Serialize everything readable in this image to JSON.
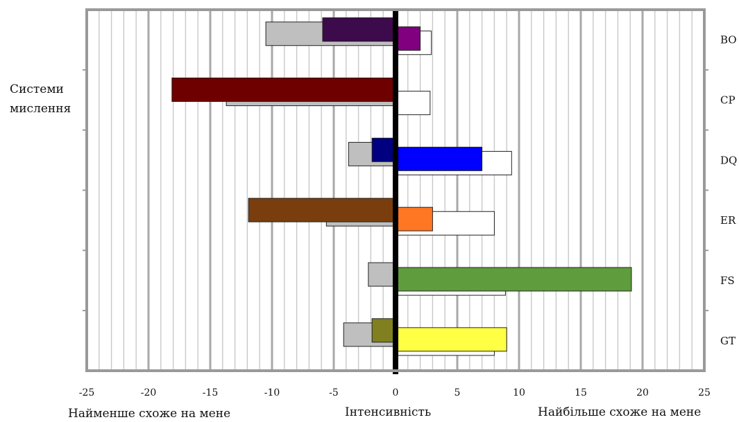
{
  "side_label": [
    "Системи",
    "мислення"
  ],
  "xlabel_left": "Найменше схоже на мене",
  "xlabel_center": "Інтенсивність",
  "xlabel_right": "Найбільше схоже на мене",
  "chart_data": {
    "type": "bar",
    "orientation": "horizontal",
    "categories": [
      "BO",
      "CP",
      "DQ",
      "ER",
      "FS",
      "GT"
    ],
    "xlim": [
      -25,
      25
    ],
    "x_ticks": [
      -25,
      -20,
      -15,
      -10,
      -5,
      0,
      5,
      10,
      15,
      20,
      25
    ],
    "grid": true,
    "series": [
      {
        "role": "negative-background",
        "values": [
          -10.5,
          -13.7,
          -3.8,
          -5.6,
          -2.2,
          -4.2
        ],
        "color": "#bfbfbf"
      },
      {
        "role": "negative-foreground",
        "values": [
          -5.9,
          -18.1,
          -1.9,
          -11.9,
          -0.1,
          -1.9
        ],
        "colors": [
          "#3d0a4b",
          "#6e0000",
          "#000080",
          "#7a3e0e",
          "#bfbfbf",
          "#808020"
        ]
      },
      {
        "role": "positive-background",
        "values": [
          2.9,
          2.8,
          9.4,
          8.0,
          8.9,
          8.0
        ],
        "color": "#ffffff"
      },
      {
        "role": "positive-foreground",
        "values": [
          2.0,
          0,
          7.0,
          3.0,
          19.1,
          9.0
        ],
        "colors": [
          "#800080",
          "#ffffff",
          "#0000ff",
          "#ff7722",
          "#5e9c3e",
          "#ffff44"
        ]
      }
    ]
  }
}
